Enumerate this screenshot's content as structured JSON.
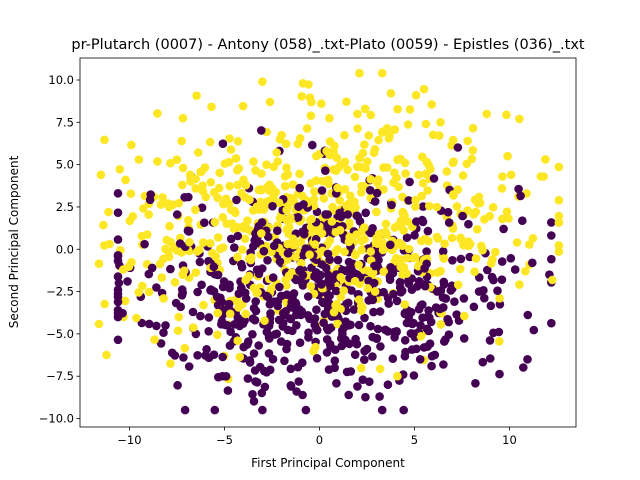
{
  "chart_data": {
    "type": "scatter",
    "title": "pr-Plutarch (0007) - Antony (058)_.txt-Plato (0059) - Epistles (036)_.txt",
    "xlabel": "First Principal Component",
    "ylabel": "Second Principal Component",
    "xlim": [
      -12.6,
      13.5
    ],
    "ylim": [
      -10.5,
      11.3
    ],
    "xticks": [
      -10,
      -5,
      0,
      5,
      10
    ],
    "yticks": [
      -10.0,
      -7.5,
      -5.0,
      -2.5,
      0.0,
      2.5,
      5.0,
      7.5,
      10.0
    ],
    "xtick_labels": [
      "−10",
      "−5",
      "0",
      "5",
      "10"
    ],
    "ytick_labels": [
      "−10.0",
      "−7.5",
      "−5.0",
      "−2.5",
      "0.0",
      "2.5",
      "5.0",
      "7.5",
      "10.0"
    ],
    "grid": false,
    "legend": false,
    "point_count": 1300,
    "colors": {
      "class_0": "#440154",
      "class_1": "#fde725"
    },
    "series": [
      {
        "x": [
          -9.4,
          -8.1,
          -7.3,
          -6.2,
          -5.8,
          -4.4,
          -3.5,
          -2.9,
          -1.7,
          -0.6,
          0.4,
          1.2,
          2.5,
          3.6,
          4.2,
          5.3,
          6.8,
          7.1,
          8.4,
          9.6,
          10.3,
          11.2,
          12.1,
          -3.0,
          -1.2,
          0.8,
          3.3,
          5.9,
          -5.1,
          -2.4,
          0.2,
          2.8,
          -6.5,
          -0.9,
          1.9,
          4.7,
          7.6,
          -8.8,
          -10.1,
          -9.2
        ],
        "y": [
          -2.8,
          -4.5,
          -3.4,
          -2.1,
          -6.4,
          -5.2,
          -4.1,
          -7.2,
          -5.6,
          -3.9,
          -6.1,
          -4.8,
          -5.9,
          -8.0,
          -7.6,
          -6.5,
          -4.3,
          -3.1,
          -2.5,
          -1.8,
          -1.2,
          -0.8,
          -1.5,
          -9.5,
          -8.4,
          -7.0,
          -9.5,
          -6.9,
          -7.5,
          -3.1,
          -2.2,
          -1.4,
          -5.0,
          -6.7,
          -5.3,
          -4.0,
          -2.9,
          -1.1,
          -1.9,
          0.3
        ]
      },
      {
        "x": [
          -11.5,
          -11.1,
          -10.2,
          -9.5,
          -8.7,
          -7.9,
          -6.8,
          -5.5,
          -4.3,
          -3.1,
          -2.2,
          -1.1,
          0.3,
          1.5,
          2.4,
          3.3,
          4.5,
          5.6,
          6.7,
          7.8,
          8.8,
          9.9,
          10.9,
          11.8,
          12.6,
          -3.0,
          -2.6,
          0.1,
          2.0,
          3.3,
          -4.3,
          -5.0,
          -7.4,
          -8.2,
          -6.1,
          5.2,
          7.3,
          9.1,
          10.4,
          4.1
        ],
        "y": [
          4.4,
          2.2,
          4.1,
          5.3,
          3.1,
          2.5,
          4.4,
          1.6,
          3.8,
          2.8,
          1.4,
          3.3,
          4.8,
          2.2,
          8.3,
          6.9,
          5.1,
          7.4,
          4.6,
          6.4,
          8.0,
          5.5,
          3.3,
          4.3,
          1.6,
          9.9,
          8.7,
          8.6,
          8.0,
          10.4,
          -5.4,
          -6.3,
          -4.0,
          -2.9,
          -3.3,
          -1.0,
          -2.1,
          -0.6,
          0.4,
          -7.5
        ]
      }
    ]
  }
}
